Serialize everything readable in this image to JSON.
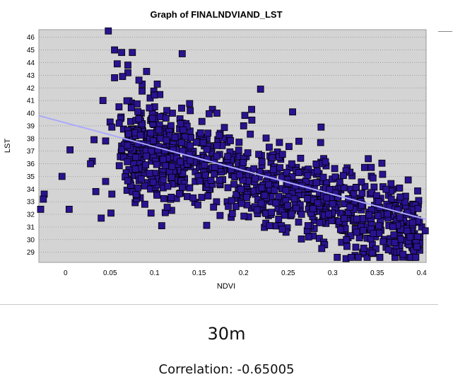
{
  "chart_data": {
    "type": "scatter",
    "title": "Graph of FINALNDVIAND_LST",
    "xlabel": "NDVI",
    "ylabel": "LST",
    "xlim": [
      -0.03,
      0.405
    ],
    "ylim": [
      28.2,
      46.6
    ],
    "x_ticks": [
      0,
      0.05,
      0.1,
      0.15,
      0.2,
      0.25,
      0.3,
      0.35,
      0.4
    ],
    "y_ticks": [
      29,
      30,
      31,
      32,
      33,
      34,
      35,
      36,
      37,
      38,
      39,
      40,
      41,
      42,
      43,
      44,
      45,
      46
    ],
    "grid": "horizontal",
    "point_count_approx": 1100,
    "trend_line": {
      "x": [
        -0.03,
        0.405
      ],
      "y": [
        39.8,
        31.6
      ]
    },
    "series": [
      {
        "marker": "square",
        "color": "#2a1290",
        "outline": "#000000",
        "x": [
          0.048,
          0.055,
          0.063,
          0.075,
          0.131,
          0.058,
          0.07,
          0.07,
          0.091,
          0.064,
          0.055,
          0.086,
          0.103,
          0.219,
          0.095,
          0.042,
          0.074,
          0.06,
          0.1,
          0.14,
          0.165,
          0.209,
          0.255,
          0.085,
          0.12,
          0.17,
          0.05,
          0.052,
          0.2,
          0.287,
          0.032,
          0.045,
          0.073,
          0.063,
          0.077,
          0.107,
          0.073,
          0.11,
          0.34,
          0.07,
          0.03,
          0.005,
          0.028,
          0.108,
          -0.004,
          0.045,
          0.052,
          0.034,
          0.069,
          -0.024,
          -0.025,
          0.004,
          0.051,
          -0.028,
          0.089,
          0.096,
          0.108,
          0.04,
          0.367,
          0.37,
          0.371,
          0.39,
          0.4,
          0.404,
          0.392,
          0.315,
          0.353,
          0.36,
          0.372,
          0.347,
          0.364,
          0.295,
          0.32,
          0.342,
          0.285,
          0.29,
          0.326,
          0.333,
          0.303,
          0.278
        ],
        "y": [
          46.5,
          45.0,
          44.8,
          44.8,
          44.7,
          43.9,
          43.8,
          43.2,
          43.3,
          42.9,
          42.8,
          42.3,
          42.3,
          41.9,
          41.2,
          41.0,
          40.8,
          40.5,
          40.5,
          40.2,
          40.3,
          40.3,
          40.1,
          40.0,
          40.0,
          40.0,
          39.3,
          38.9,
          39.0,
          38.9,
          37.9,
          37.8,
          37.6,
          37.4,
          37.0,
          36.9,
          36.2,
          36.1,
          36.4,
          38.4,
          36.2,
          37.1,
          36.0,
          35.4,
          35.0,
          34.6,
          33.6,
          33.8,
          33.9,
          33.6,
          33.2,
          32.4,
          32.1,
          32.4,
          32.8,
          32.1,
          31.1,
          31.7,
          29.1,
          28.6,
          30.3,
          32.8,
          31.0,
          30.7,
          31.5,
          28.5,
          28.6,
          29.4,
          29.0,
          32.7,
          33.9,
          33.8,
          33.2,
          33.6,
          30.1,
          29.8,
          29.4,
          30.8,
          31.5,
          30.3
        ]
      }
    ]
  },
  "captions": {
    "resolution": "30m",
    "correlation": "Correlation: -0.65005"
  }
}
